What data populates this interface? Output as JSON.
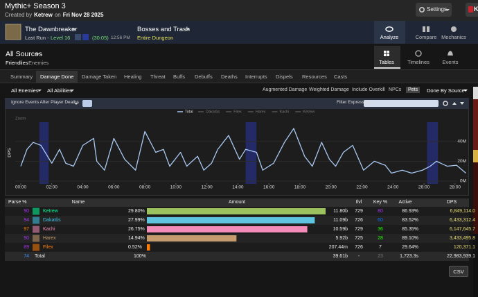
{
  "header": {
    "title": "Mythic+ Season 3",
    "created_prefix": "Created by",
    "creator": "Ketrew",
    "created_mid": "on",
    "date": "Fri Nov 28 2025",
    "settings": "Settings",
    "user": "Ke"
  },
  "encounter": {
    "name": "The Dawnbreaker",
    "last_run": "Last Run -",
    "level": "Level 16",
    "duration": "(30:05)",
    "time": "12:56 PM",
    "fight": "Bosses and Trash",
    "fight_sub": "Entire Dungeon"
  },
  "nav": [
    "Analyze",
    "Compare",
    "Mechanics"
  ],
  "sources": {
    "title": "All Sources",
    "filters": [
      "Friendlies",
      "Enemies"
    ]
  },
  "views": [
    "Tables",
    "Timelines",
    "Events"
  ],
  "tabs": [
    "Summary",
    "Damage Done",
    "Damage Taken",
    "Healing",
    "Threat",
    "Buffs",
    "Debuffs",
    "Deaths",
    "Interrupts",
    "Dispels",
    "Resources",
    "Casts"
  ],
  "filters": {
    "enemies": "All Enemies",
    "abilities": "All Abilities",
    "options": [
      "Augmented Damage",
      "Weighted Damage",
      "Include Overkill",
      "NPCs",
      "Pets",
      "Done By Source"
    ]
  },
  "chart": {
    "type": "line",
    "toggle": "Ignore Events After Player Deaths",
    "filter_label": "Filter Expression:",
    "zoom": "Zoom",
    "y_label": "DPS",
    "series": [
      {
        "name": "Total",
        "color": "#a9c9f2",
        "x": [
          0,
          0.4,
          0.8,
          1.3,
          2,
          2.5,
          2.9,
          3.4,
          4,
          4.7,
          4.9,
          5.4,
          6,
          6.7,
          7.4,
          8,
          8.7,
          9.2,
          9.6,
          10.3,
          10.7,
          11.4,
          11.8,
          12.3,
          12.7,
          13.4,
          14.1,
          14.5,
          15.2,
          15.6,
          16.3,
          17,
          17.6,
          18.3,
          18.8,
          19.4,
          19.9,
          20.3,
          20.8,
          21.4,
          22.1,
          22.8,
          23.5,
          23.9,
          24.6,
          25.2,
          25.9,
          26.4,
          26.8,
          27.5,
          28.1,
          28.7
        ],
        "values": [
          15,
          32,
          39,
          36,
          18,
          32,
          18,
          15,
          36,
          43,
          20,
          11,
          43,
          22,
          11,
          50,
          29,
          32,
          15,
          29,
          15,
          25,
          11,
          18,
          32,
          46,
          22,
          32,
          29,
          11,
          18,
          39,
          53,
          25,
          15,
          39,
          22,
          15,
          29,
          36,
          11,
          20,
          16,
          8,
          11,
          8,
          11,
          15,
          20,
          15,
          16,
          8
        ]
      }
    ],
    "hidden_series": [
      "Dakatûs",
      "Filex",
      "Harex",
      "Kachi",
      "Ketrew"
    ],
    "highlights": [
      [
        1.2,
        1.8
      ],
      [
        14.5,
        15.2
      ],
      [
        26.2,
        26.9
      ]
    ],
    "xlim": [
      0,
      28.9
    ],
    "ylim": [
      0,
      65
    ],
    "xticks": [
      {
        "value": 0,
        "label": "00:00"
      },
      {
        "value": 2,
        "label": "02:00"
      },
      {
        "value": 4,
        "label": "04:00"
      },
      {
        "value": 6,
        "label": "06:00"
      },
      {
        "value": 8,
        "label": "08:00"
      },
      {
        "value": 10,
        "label": "10:00"
      },
      {
        "value": 12,
        "label": "12:00"
      },
      {
        "value": 14,
        "label": "14:00"
      },
      {
        "value": 16,
        "label": "16:00"
      },
      {
        "value": 18,
        "label": "18:00"
      },
      {
        "value": 20,
        "label": "20:00"
      },
      {
        "value": 22,
        "label": "22:00"
      },
      {
        "value": 24,
        "label": "24:00"
      },
      {
        "value": 26,
        "label": "26:00"
      },
      {
        "value": 28,
        "label": "28:00"
      }
    ],
    "yticks": [
      {
        "value": 0,
        "label": "0M"
      },
      {
        "value": 20,
        "label": "20M"
      },
      {
        "value": 40,
        "label": "40M"
      }
    ],
    "grid": true
  },
  "table": {
    "columns": [
      "Parse %",
      "Name",
      "Amount",
      "Ilvl",
      "Key %",
      "Active",
      "DPS"
    ],
    "rows": [
      {
        "parse": 90,
        "parse_color": "#a335ee",
        "name": "Ketrew",
        "color": "#00ff98",
        "bar_color": "#9cc260",
        "pct": 29.8,
        "pct_label": "29.80%",
        "amount": "11.80b",
        "ilvl": 729,
        "key": 80,
        "key_color": "#a335ee",
        "active": "86.93%",
        "dps": "6,849,114.0"
      },
      {
        "parse": 94,
        "parse_color": "#a335ee",
        "name": "Dakatûs",
        "color": "#3fc7eb",
        "bar_color": "#5ec4e0",
        "pct": 27.99,
        "pct_label": "27.99%",
        "amount": "11.09b",
        "ilvl": 726,
        "key": 60,
        "key_color": "#0070ff",
        "active": "83.52%",
        "dps": "6,433,312.4"
      },
      {
        "parse": 97,
        "parse_color": "#ff8000",
        "name": "Kachi",
        "color": "#f48cba",
        "bar_color": "#f48cba",
        "pct": 26.75,
        "pct_label": "26.75%",
        "amount": "10.59b",
        "ilvl": 729,
        "key": 36,
        "key_color": "#1eff00",
        "active": "85.35%",
        "dps": "6,147,645.7"
      },
      {
        "parse": 90,
        "parse_color": "#a335ee",
        "name": "Harex",
        "color": "#c69b6d",
        "bar_color": "#c69b6d",
        "pct": 14.94,
        "pct_label": "14.94%",
        "amount": "5.92b",
        "ilvl": 725,
        "key": 28,
        "key_color": "#1eff00",
        "active": "89.10%",
        "dps": "3,433,495.8"
      },
      {
        "parse": 89,
        "parse_color": "#a335ee",
        "name": "Filex",
        "color": "#ff7c0a",
        "bar_color": "#ff7c0a",
        "pct": 0.52,
        "pct_label": "0.52%",
        "amount": "207.44m",
        "ilvl": 726,
        "key": 7,
        "key_color": "#eeeeee",
        "active": "29.64%",
        "dps": "120,371.1"
      }
    ],
    "total": {
      "parse": 74,
      "parse_color": "#3d8bff",
      "name": "Total",
      "pct_label": "100%",
      "amount": "39.61b",
      "ilvl": "-",
      "key": 23,
      "key_color": "#777777",
      "active": "1,723.3s",
      "dps": "22,983,939.1"
    },
    "dps_color": "#e6dc74"
  },
  "csv": "CSV"
}
